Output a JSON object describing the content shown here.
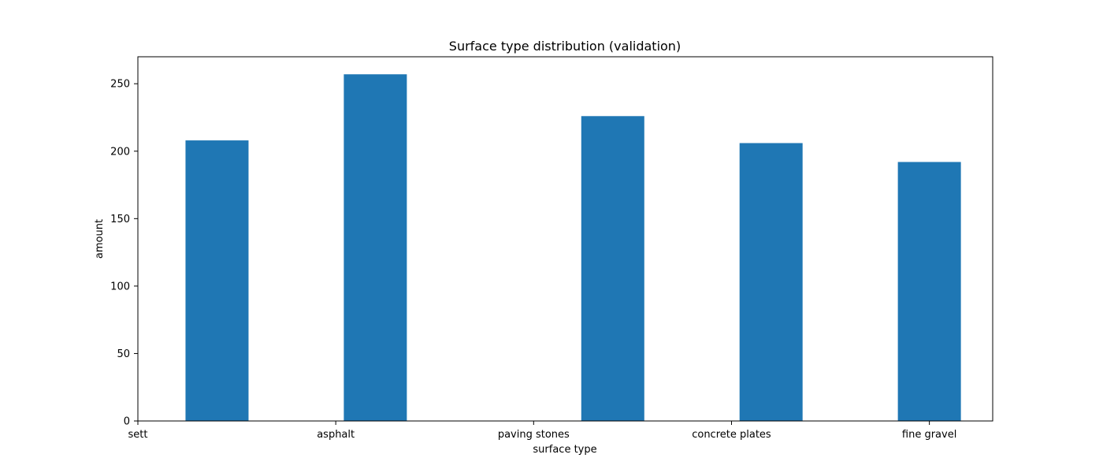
{
  "chart_data": {
    "type": "bar",
    "title": "Surface type distribution (validation)",
    "xlabel": "surface type",
    "ylabel": "amount",
    "categories": [
      "sett",
      "asphalt",
      "paving stones",
      "concrete plates",
      "fine gravel"
    ],
    "bar_x": [
      0.5,
      1.5,
      3.0,
      4.0,
      5.0
    ],
    "values": [
      208,
      257,
      226,
      206,
      192
    ],
    "xlim": [
      0.0,
      5.4
    ],
    "ylim": [
      0,
      270
    ],
    "yticks": [
      0,
      50,
      100,
      150,
      200,
      250
    ],
    "xticks": [
      0,
      1.25,
      2.5,
      3.75,
      5.0
    ],
    "grid": false,
    "bar_color": "#1f77b4"
  }
}
